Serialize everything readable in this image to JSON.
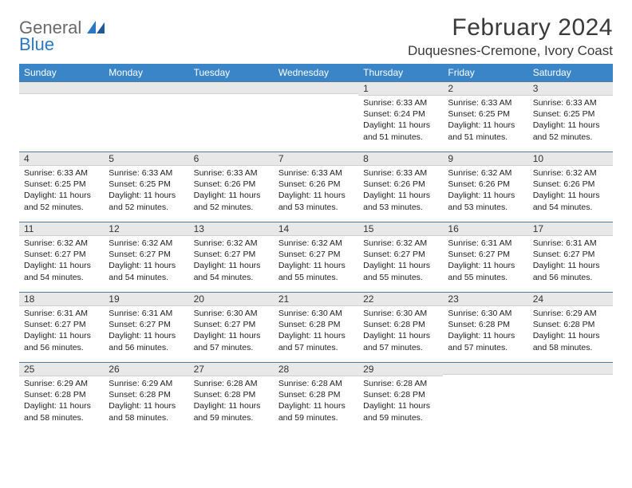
{
  "logo": {
    "general": "General",
    "blue": "Blue"
  },
  "title": "February 2024",
  "location": "Duquesnes-Cremone, Ivory Coast",
  "header_bg": "#3a84c8",
  "daynum_bg": "#e8e8e8",
  "cell_border": "#5a7a9a",
  "weekdays": [
    "Sunday",
    "Monday",
    "Tuesday",
    "Wednesday",
    "Thursday",
    "Friday",
    "Saturday"
  ],
  "weeks": [
    [
      {
        "n": "",
        "sunrise": "",
        "sunset": "",
        "daylight": ""
      },
      {
        "n": "",
        "sunrise": "",
        "sunset": "",
        "daylight": ""
      },
      {
        "n": "",
        "sunrise": "",
        "sunset": "",
        "daylight": ""
      },
      {
        "n": "",
        "sunrise": "",
        "sunset": "",
        "daylight": ""
      },
      {
        "n": "1",
        "sunrise": "Sunrise: 6:33 AM",
        "sunset": "Sunset: 6:24 PM",
        "daylight": "Daylight: 11 hours and 51 minutes."
      },
      {
        "n": "2",
        "sunrise": "Sunrise: 6:33 AM",
        "sunset": "Sunset: 6:25 PM",
        "daylight": "Daylight: 11 hours and 51 minutes."
      },
      {
        "n": "3",
        "sunrise": "Sunrise: 6:33 AM",
        "sunset": "Sunset: 6:25 PM",
        "daylight": "Daylight: 11 hours and 52 minutes."
      }
    ],
    [
      {
        "n": "4",
        "sunrise": "Sunrise: 6:33 AM",
        "sunset": "Sunset: 6:25 PM",
        "daylight": "Daylight: 11 hours and 52 minutes."
      },
      {
        "n": "5",
        "sunrise": "Sunrise: 6:33 AM",
        "sunset": "Sunset: 6:25 PM",
        "daylight": "Daylight: 11 hours and 52 minutes."
      },
      {
        "n": "6",
        "sunrise": "Sunrise: 6:33 AM",
        "sunset": "Sunset: 6:26 PM",
        "daylight": "Daylight: 11 hours and 52 minutes."
      },
      {
        "n": "7",
        "sunrise": "Sunrise: 6:33 AM",
        "sunset": "Sunset: 6:26 PM",
        "daylight": "Daylight: 11 hours and 53 minutes."
      },
      {
        "n": "8",
        "sunrise": "Sunrise: 6:33 AM",
        "sunset": "Sunset: 6:26 PM",
        "daylight": "Daylight: 11 hours and 53 minutes."
      },
      {
        "n": "9",
        "sunrise": "Sunrise: 6:32 AM",
        "sunset": "Sunset: 6:26 PM",
        "daylight": "Daylight: 11 hours and 53 minutes."
      },
      {
        "n": "10",
        "sunrise": "Sunrise: 6:32 AM",
        "sunset": "Sunset: 6:26 PM",
        "daylight": "Daylight: 11 hours and 54 minutes."
      }
    ],
    [
      {
        "n": "11",
        "sunrise": "Sunrise: 6:32 AM",
        "sunset": "Sunset: 6:27 PM",
        "daylight": "Daylight: 11 hours and 54 minutes."
      },
      {
        "n": "12",
        "sunrise": "Sunrise: 6:32 AM",
        "sunset": "Sunset: 6:27 PM",
        "daylight": "Daylight: 11 hours and 54 minutes."
      },
      {
        "n": "13",
        "sunrise": "Sunrise: 6:32 AM",
        "sunset": "Sunset: 6:27 PM",
        "daylight": "Daylight: 11 hours and 54 minutes."
      },
      {
        "n": "14",
        "sunrise": "Sunrise: 6:32 AM",
        "sunset": "Sunset: 6:27 PM",
        "daylight": "Daylight: 11 hours and 55 minutes."
      },
      {
        "n": "15",
        "sunrise": "Sunrise: 6:32 AM",
        "sunset": "Sunset: 6:27 PM",
        "daylight": "Daylight: 11 hours and 55 minutes."
      },
      {
        "n": "16",
        "sunrise": "Sunrise: 6:31 AM",
        "sunset": "Sunset: 6:27 PM",
        "daylight": "Daylight: 11 hours and 55 minutes."
      },
      {
        "n": "17",
        "sunrise": "Sunrise: 6:31 AM",
        "sunset": "Sunset: 6:27 PM",
        "daylight": "Daylight: 11 hours and 56 minutes."
      }
    ],
    [
      {
        "n": "18",
        "sunrise": "Sunrise: 6:31 AM",
        "sunset": "Sunset: 6:27 PM",
        "daylight": "Daylight: 11 hours and 56 minutes."
      },
      {
        "n": "19",
        "sunrise": "Sunrise: 6:31 AM",
        "sunset": "Sunset: 6:27 PM",
        "daylight": "Daylight: 11 hours and 56 minutes."
      },
      {
        "n": "20",
        "sunrise": "Sunrise: 6:30 AM",
        "sunset": "Sunset: 6:27 PM",
        "daylight": "Daylight: 11 hours and 57 minutes."
      },
      {
        "n": "21",
        "sunrise": "Sunrise: 6:30 AM",
        "sunset": "Sunset: 6:28 PM",
        "daylight": "Daylight: 11 hours and 57 minutes."
      },
      {
        "n": "22",
        "sunrise": "Sunrise: 6:30 AM",
        "sunset": "Sunset: 6:28 PM",
        "daylight": "Daylight: 11 hours and 57 minutes."
      },
      {
        "n": "23",
        "sunrise": "Sunrise: 6:30 AM",
        "sunset": "Sunset: 6:28 PM",
        "daylight": "Daylight: 11 hours and 57 minutes."
      },
      {
        "n": "24",
        "sunrise": "Sunrise: 6:29 AM",
        "sunset": "Sunset: 6:28 PM",
        "daylight": "Daylight: 11 hours and 58 minutes."
      }
    ],
    [
      {
        "n": "25",
        "sunrise": "Sunrise: 6:29 AM",
        "sunset": "Sunset: 6:28 PM",
        "daylight": "Daylight: 11 hours and 58 minutes."
      },
      {
        "n": "26",
        "sunrise": "Sunrise: 6:29 AM",
        "sunset": "Sunset: 6:28 PM",
        "daylight": "Daylight: 11 hours and 58 minutes."
      },
      {
        "n": "27",
        "sunrise": "Sunrise: 6:28 AM",
        "sunset": "Sunset: 6:28 PM",
        "daylight": "Daylight: 11 hours and 59 minutes."
      },
      {
        "n": "28",
        "sunrise": "Sunrise: 6:28 AM",
        "sunset": "Sunset: 6:28 PM",
        "daylight": "Daylight: 11 hours and 59 minutes."
      },
      {
        "n": "29",
        "sunrise": "Sunrise: 6:28 AM",
        "sunset": "Sunset: 6:28 PM",
        "daylight": "Daylight: 11 hours and 59 minutes."
      },
      {
        "n": "",
        "sunrise": "",
        "sunset": "",
        "daylight": ""
      },
      {
        "n": "",
        "sunrise": "",
        "sunset": "",
        "daylight": ""
      }
    ]
  ]
}
